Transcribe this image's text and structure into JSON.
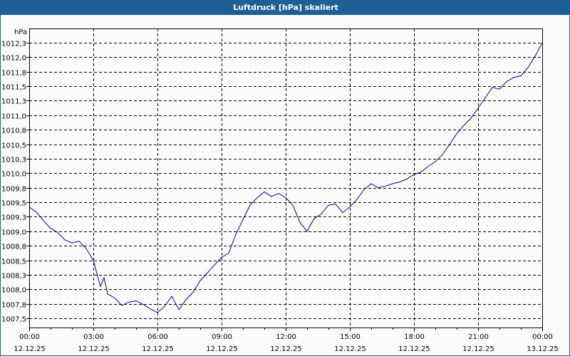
{
  "window": {
    "title": "Luftdruck [hPa] skaliert",
    "title_bar_color": "#1e6096"
  },
  "chart_data": {
    "type": "line",
    "title": "Luftdruck [hPa] skaliert",
    "xlabel": "",
    "ylabel": "hPa",
    "y_unit_label": "hPa",
    "ylim": [
      1007.25,
      1012.45
    ],
    "grid": true,
    "legend": false,
    "line_color": "#0000a0",
    "y_ticks": [
      "1012,3",
      "1012,0",
      "1011,8",
      "1011,5",
      "1011,3",
      "1011,0",
      "1010,8",
      "1010,5",
      "1010,3",
      "1010,0",
      "1009,8",
      "1009,5",
      "1009,3",
      "1009,0",
      "1008,8",
      "1008,5",
      "1008,3",
      "1008,0",
      "1007,8",
      "1007,5"
    ],
    "x_ticks": [
      {
        "time": "00:00",
        "date": "12.12.25"
      },
      {
        "time": "03:00",
        "date": "12.12.25"
      },
      {
        "time": "06:00",
        "date": "12.12.25"
      },
      {
        "time": "09:00",
        "date": "12.12.25"
      },
      {
        "time": "12:00",
        "date": "12.12.25"
      },
      {
        "time": "15:00",
        "date": "12.12.25"
      },
      {
        "time": "18:00",
        "date": "12.12.25"
      },
      {
        "time": "21:00",
        "date": "12.12.25"
      },
      {
        "time": "00:00",
        "date": "13.12.25"
      }
    ],
    "series": [
      {
        "name": "Luftdruck",
        "x_hours": [
          0,
          0.33,
          0.67,
          1.0,
          1.33,
          1.67,
          2.0,
          2.33,
          2.67,
          3.0,
          3.33,
          3.5,
          3.67,
          4.0,
          4.33,
          4.67,
          5.0,
          5.33,
          5.67,
          6.0,
          6.33,
          6.67,
          7.0,
          7.33,
          7.67,
          8.0,
          8.33,
          8.67,
          9.0,
          9.33,
          9.67,
          10.0,
          10.33,
          10.67,
          11.0,
          11.33,
          11.67,
          12.0,
          12.33,
          12.67,
          13.0,
          13.33,
          13.67,
          14.0,
          14.33,
          14.67,
          15.0,
          15.33,
          15.67,
          16.0,
          16.33,
          16.67,
          17.0,
          17.33,
          17.67,
          18.0,
          18.33,
          18.67,
          19.0,
          19.33,
          19.67,
          20.0,
          20.33,
          20.67,
          21.0,
          21.33,
          21.67,
          22.0,
          22.33,
          22.67,
          23.0,
          23.33,
          23.67,
          24.0
        ],
        "values": [
          1009.42,
          1009.33,
          1009.18,
          1009.05,
          1008.98,
          1008.85,
          1008.8,
          1008.83,
          1008.7,
          1008.5,
          1008.05,
          1008.2,
          1007.92,
          1007.85,
          1007.72,
          1007.78,
          1007.8,
          1007.74,
          1007.66,
          1007.6,
          1007.7,
          1007.88,
          1007.65,
          1007.82,
          1007.95,
          1008.15,
          1008.28,
          1008.42,
          1008.55,
          1008.62,
          1008.95,
          1009.2,
          1009.45,
          1009.58,
          1009.68,
          1009.6,
          1009.65,
          1009.58,
          1009.45,
          1009.15,
          1009.0,
          1009.22,
          1009.3,
          1009.45,
          1009.47,
          1009.32,
          1009.42,
          1009.55,
          1009.72,
          1009.82,
          1009.75,
          1009.78,
          1009.82,
          1009.85,
          1009.9,
          1009.98,
          1010.02,
          1010.12,
          1010.2,
          1010.32,
          1010.5,
          1010.68,
          1010.82,
          1010.95,
          1011.12,
          1011.3,
          1011.48,
          1011.45,
          1011.58,
          1011.65,
          1011.68,
          1011.82,
          1012.02,
          1012.25
        ]
      }
    ]
  }
}
